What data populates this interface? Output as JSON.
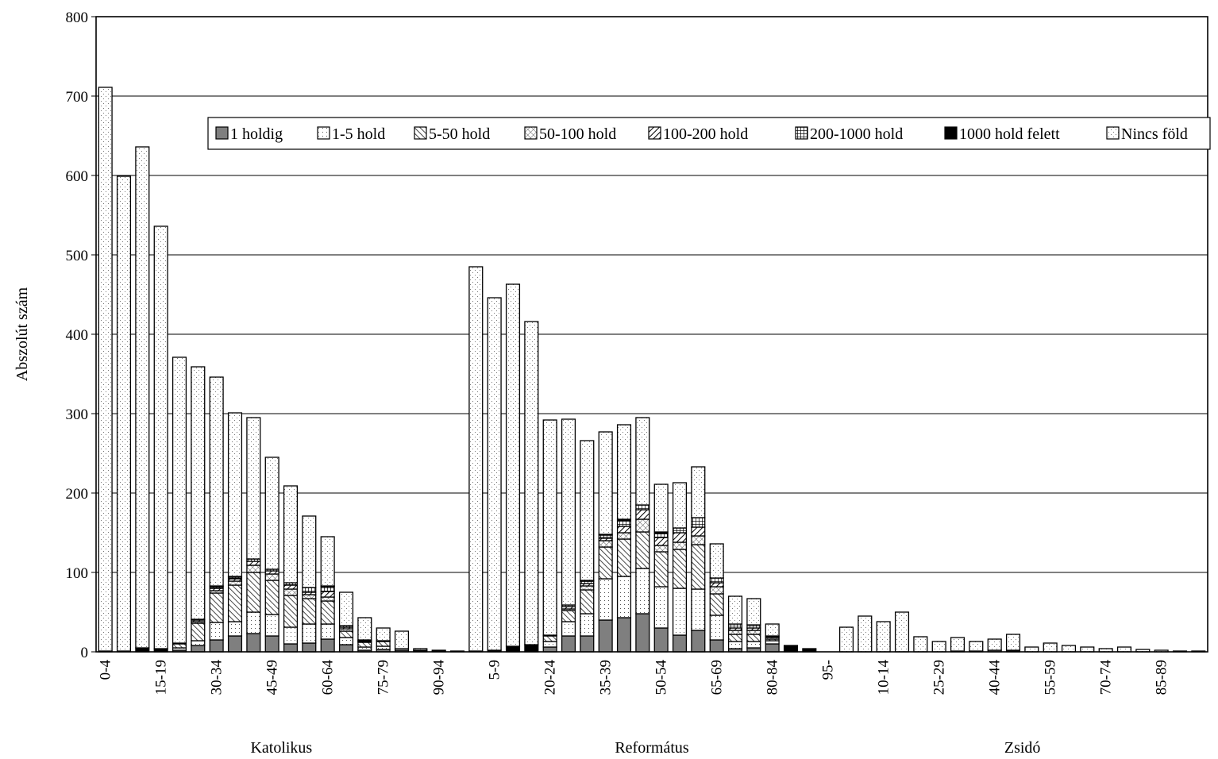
{
  "chart_data": {
    "type": "bar",
    "stacked": true,
    "ylabel": "Abszolút szám",
    "ylim": [
      0,
      800
    ],
    "yticks": [
      0,
      100,
      200,
      300,
      400,
      500,
      600,
      700,
      800
    ],
    "grid": true,
    "legend_position": "top-right",
    "series": [
      {
        "name": "1 holdig",
        "pattern": "dark-gray"
      },
      {
        "name": "1-5 hold",
        "pattern": "dots"
      },
      {
        "name": "5-50 hold",
        "pattern": "diagonal-hatch"
      },
      {
        "name": "50-100 hold",
        "pattern": "cross-hatch"
      },
      {
        "name": "100-200 hold",
        "pattern": "back-diagonal"
      },
      {
        "name": "200-1000 hold",
        "pattern": "grid"
      },
      {
        "name": "1000 hold felett",
        "pattern": "black"
      },
      {
        "name": "Nincs föld",
        "pattern": "fine-dots"
      }
    ],
    "groups": [
      {
        "name": "Katolikus",
        "categories": [
          "0-4",
          "5-9",
          "10-14",
          "15-19",
          "20-24",
          "25-29",
          "30-34",
          "35-39",
          "40-44",
          "45-49",
          "50-54",
          "55-59",
          "60-64",
          "65-69",
          "70-74",
          "75-79",
          "80-84",
          "85-89",
          "90-94",
          "95-"
        ],
        "tick_labels": [
          "0-4",
          "15-19",
          "30-34",
          "45-49",
          "60-64",
          "75-79",
          "90-94"
        ],
        "values": [
          [
            0,
            0,
            0,
            0,
            0,
            0,
            1,
            710
          ],
          [
            0,
            0,
            0,
            0,
            0,
            0,
            1,
            598
          ],
          [
            0,
            0,
            0,
            0,
            0,
            0,
            5,
            631
          ],
          [
            0,
            0,
            0,
            0,
            0,
            0,
            4,
            532
          ],
          [
            2,
            3,
            5,
            0,
            0,
            0,
            1,
            360
          ],
          [
            8,
            6,
            22,
            2,
            2,
            0,
            1,
            318
          ],
          [
            15,
            22,
            37,
            3,
            3,
            2,
            1,
            263
          ],
          [
            20,
            18,
            46,
            5,
            3,
            2,
            1,
            206
          ],
          [
            23,
            27,
            50,
            9,
            5,
            3,
            0,
            178
          ],
          [
            20,
            27,
            43,
            8,
            4,
            2,
            0,
            141
          ],
          [
            10,
            21,
            40,
            8,
            5,
            3,
            0,
            122
          ],
          [
            11,
            24,
            32,
            5,
            3,
            6,
            0,
            90
          ],
          [
            16,
            19,
            29,
            5,
            7,
            6,
            1,
            62
          ],
          [
            9,
            9,
            8,
            3,
            2,
            2,
            0,
            42
          ],
          [
            2,
            4,
            6,
            1,
            1,
            1,
            0,
            28
          ],
          [
            3,
            4,
            6,
            0,
            1,
            0,
            0,
            16
          ],
          [
            2,
            2,
            0,
            0,
            0,
            0,
            0,
            22
          ],
          [
            1,
            1,
            0,
            0,
            0,
            0,
            0,
            2
          ],
          [
            1,
            0,
            0,
            0,
            0,
            0,
            0,
            1
          ],
          [
            0,
            0,
            0,
            0,
            0,
            0,
            0,
            1
          ]
        ]
      },
      {
        "name": "Református",
        "categories": [
          "0-4",
          "5-9",
          "10-14",
          "15-19",
          "20-24",
          "25-29",
          "30-34",
          "35-39",
          "40-44",
          "45-49",
          "50-54",
          "55-59",
          "60-64",
          "65-69",
          "70-74",
          "75-79",
          "80-84",
          "85-89",
          "90-94",
          "95-"
        ],
        "tick_labels": [
          "5-9",
          "20-24",
          "35-39",
          "50-54",
          "65-69",
          "80-84",
          "95-"
        ],
        "values": [
          [
            0,
            0,
            0,
            0,
            0,
            0,
            1,
            484
          ],
          [
            0,
            0,
            0,
            0,
            0,
            0,
            2,
            444
          ],
          [
            0,
            0,
            0,
            0,
            0,
            0,
            7,
            456
          ],
          [
            0,
            0,
            0,
            0,
            0,
            0,
            9,
            407
          ],
          [
            6,
            7,
            7,
            0,
            0,
            0,
            1,
            271
          ],
          [
            20,
            18,
            14,
            2,
            3,
            2,
            0,
            234
          ],
          [
            20,
            28,
            30,
            5,
            3,
            3,
            1,
            176
          ],
          [
            40,
            52,
            40,
            8,
            3,
            4,
            1,
            129
          ],
          [
            43,
            52,
            47,
            8,
            8,
            7,
            2,
            119
          ],
          [
            48,
            57,
            46,
            16,
            12,
            6,
            0,
            110
          ],
          [
            30,
            52,
            44,
            8,
            10,
            5,
            2,
            60
          ],
          [
            21,
            59,
            49,
            9,
            12,
            6,
            0,
            57
          ],
          [
            27,
            52,
            56,
            11,
            11,
            12,
            0,
            64
          ],
          [
            15,
            31,
            27,
            9,
            5,
            6,
            0,
            43
          ],
          [
            4,
            9,
            9,
            5,
            3,
            5,
            0,
            35
          ],
          [
            5,
            8,
            9,
            5,
            3,
            4,
            0,
            33
          ],
          [
            10,
            4,
            2,
            2,
            1,
            1,
            0,
            15
          ],
          [
            1,
            0,
            0,
            0,
            0,
            0,
            7,
            0
          ],
          [
            0,
            0,
            0,
            0,
            0,
            0,
            4,
            0
          ],
          [
            0,
            0,
            0,
            0,
            0,
            0,
            0,
            0
          ]
        ]
      },
      {
        "name": "Zsidó",
        "categories": [
          "0-4",
          "5-9",
          "10-14",
          "15-19",
          "20-24",
          "25-29",
          "30-34",
          "35-39",
          "40-44",
          "45-49",
          "50-54",
          "55-59",
          "60-64",
          "65-69",
          "70-74",
          "75-79",
          "80-84",
          "85-89",
          "90-94",
          "95-"
        ],
        "tick_labels": [
          "10-14",
          "25-29",
          "40-44",
          "55-59",
          "70-74",
          "85-89"
        ],
        "values": [
          [
            0,
            0,
            0,
            0,
            0,
            0,
            0,
            31
          ],
          [
            0,
            0,
            0,
            0,
            0,
            0,
            0,
            45
          ],
          [
            0,
            0,
            0,
            0,
            0,
            0,
            0,
            38
          ],
          [
            0,
            0,
            0,
            0,
            0,
            0,
            0,
            50
          ],
          [
            0,
            0,
            0,
            0,
            0,
            0,
            0,
            19
          ],
          [
            0,
            0,
            0,
            0,
            0,
            0,
            0,
            13
          ],
          [
            1,
            0,
            0,
            0,
            0,
            0,
            0,
            17
          ],
          [
            1,
            0,
            0,
            0,
            0,
            0,
            0,
            12
          ],
          [
            2,
            0,
            0,
            0,
            0,
            0,
            0,
            14
          ],
          [
            1,
            0,
            0,
            0,
            0,
            0,
            1,
            20
          ],
          [
            0,
            0,
            0,
            0,
            0,
            0,
            0,
            6
          ],
          [
            0,
            0,
            0,
            0,
            0,
            0,
            0,
            11
          ],
          [
            0,
            0,
            0,
            0,
            0,
            0,
            0,
            8
          ],
          [
            0,
            0,
            0,
            0,
            0,
            0,
            0,
            6
          ],
          [
            0,
            0,
            0,
            0,
            0,
            0,
            0,
            4
          ],
          [
            0,
            0,
            0,
            0,
            0,
            0,
            0,
            6
          ],
          [
            0,
            0,
            0,
            0,
            0,
            0,
            0,
            3
          ],
          [
            0,
            0,
            0,
            0,
            0,
            0,
            0,
            2
          ],
          [
            0,
            0,
            0,
            0,
            0,
            0,
            0,
            1
          ],
          [
            0,
            0,
            0,
            0,
            0,
            0,
            0,
            1
          ]
        ]
      }
    ]
  }
}
